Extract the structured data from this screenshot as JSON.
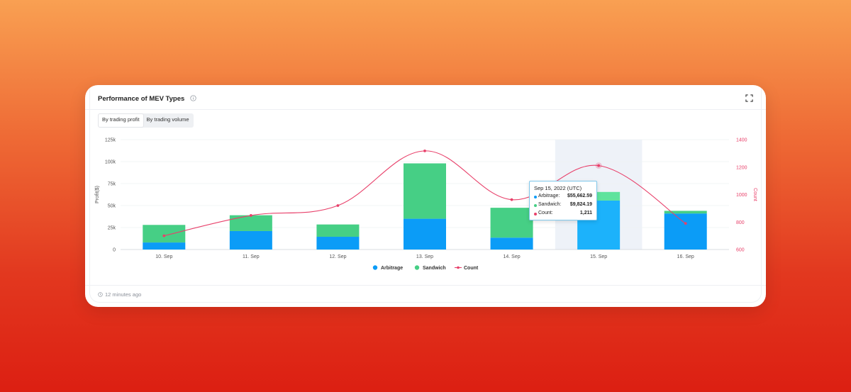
{
  "card": {
    "title": "Performance of MEV Types",
    "toggle": [
      "By trading profit",
      "By trading volume"
    ],
    "footer": "12 minutes ago"
  },
  "colors": {
    "arbitrage": "#0b9cf7",
    "sandwich": "#46cf85",
    "count": "#e8406a",
    "highlight_band": "#eef2f8",
    "arbitrage_hover": "#1cb2fb",
    "sandwich_hover": "#5fe39d"
  },
  "icons": {
    "info": "info-icon",
    "expand": "expand-icon",
    "clock": "clock-icon"
  },
  "tooltip": {
    "title": "Sep 15, 2022 (UTC)",
    "rows": [
      {
        "label": "Arbitrage:",
        "value": "$55,662.59"
      },
      {
        "label": "Sandwich:",
        "value": "$9,824.19"
      },
      {
        "label": "Count:",
        "value": "1,211"
      }
    ]
  },
  "chart_data": {
    "type": "bar",
    "stacked": true,
    "categories": [
      "10. Sep",
      "11. Sep",
      "12. Sep",
      "13. Sep",
      "14. Sep",
      "15. Sep",
      "16. Sep"
    ],
    "series": [
      {
        "name": "Arbitrage",
        "type": "bar",
        "axis": "left",
        "values": [
          8000,
          21000,
          14500,
          35000,
          13500,
          55662.59,
          41000
        ]
      },
      {
        "name": "Sandwich",
        "type": "bar",
        "axis": "left",
        "values": [
          20000,
          18000,
          14000,
          63000,
          34000,
          9824.19,
          3000
        ]
      },
      {
        "name": "Count",
        "type": "line",
        "axis": "right",
        "values": [
          700,
          848,
          920,
          1318,
          963,
          1211,
          790
        ]
      }
    ],
    "ylabel": "Profit($)",
    "y2label": "Count",
    "ylim": [
      0,
      125000
    ],
    "y2lim": [
      600,
      1400
    ],
    "yticks": [
      "0",
      "25k",
      "50k",
      "75k",
      "100k",
      "125k"
    ],
    "y2ticks": [
      "600",
      "800",
      "1000",
      "1200",
      "1400"
    ],
    "highlight_category": "15. Sep",
    "legend": "bottom-center",
    "grid": true
  }
}
